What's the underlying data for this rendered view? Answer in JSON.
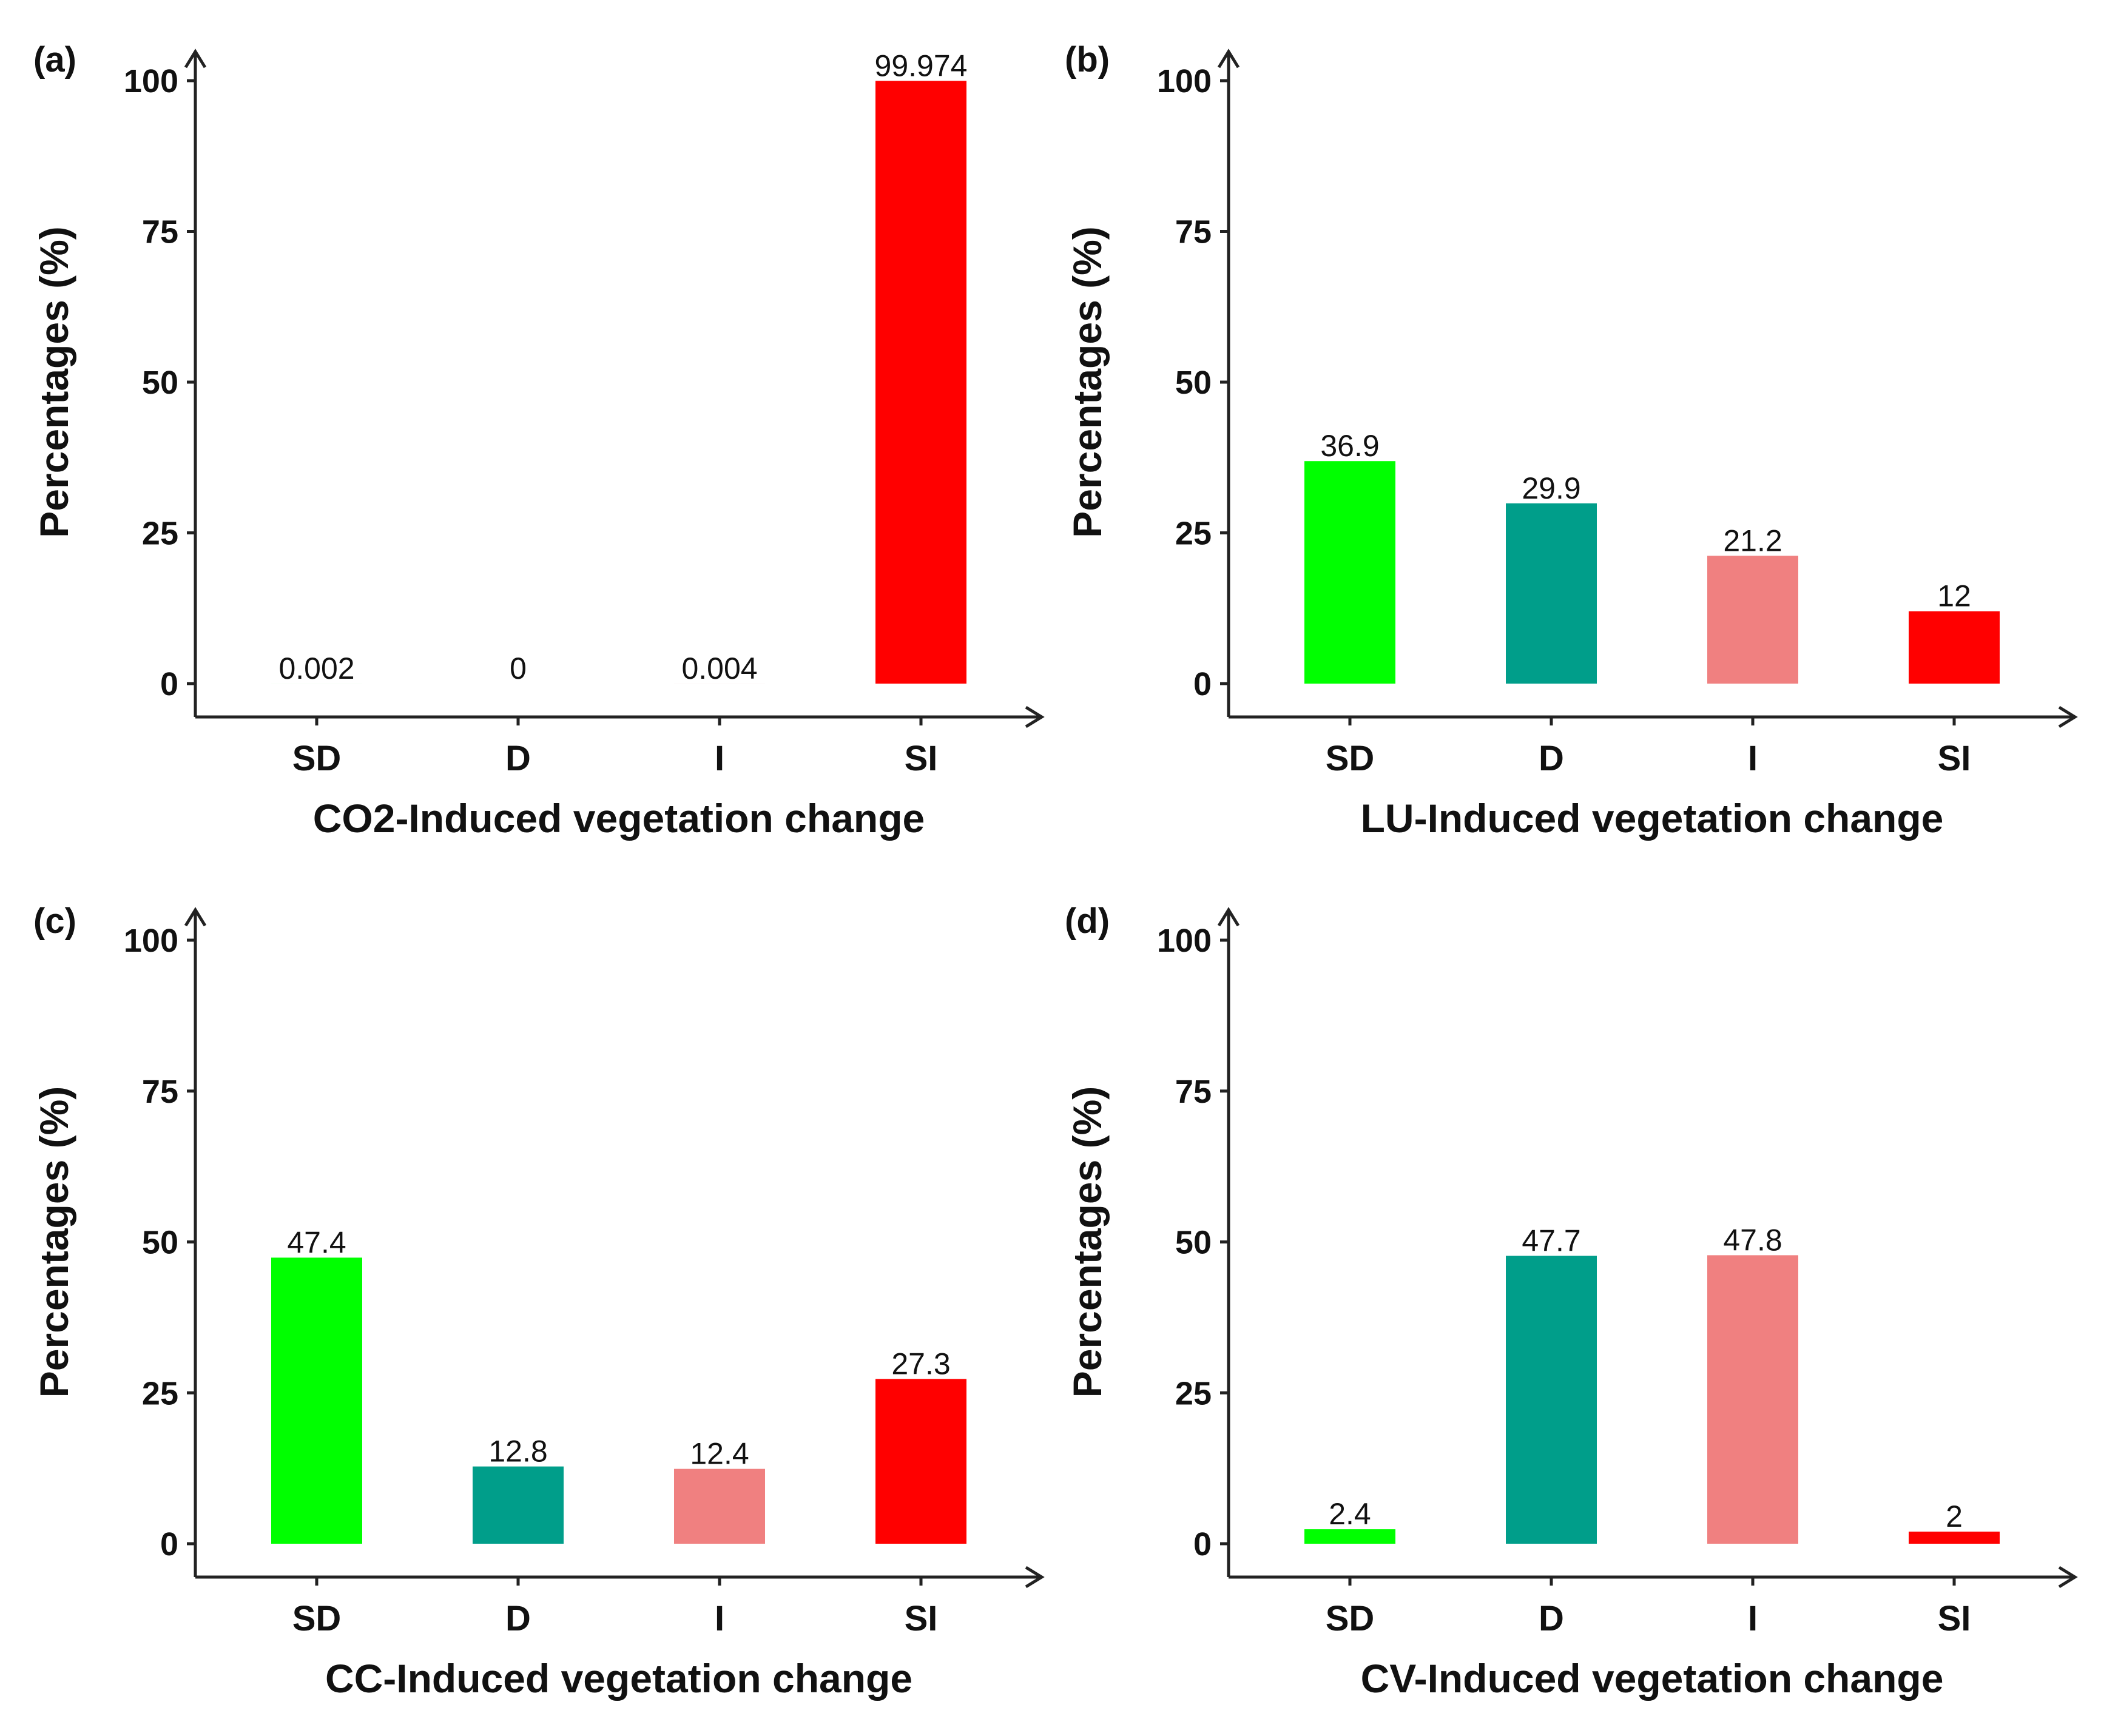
{
  "chart_data": [
    {
      "panel": "(a)",
      "type": "bar",
      "categories": [
        "SD",
        "D",
        "I",
        "SI"
      ],
      "values": [
        0.002,
        0,
        0.004,
        99.974
      ],
      "value_labels": [
        "0.002",
        "0",
        "0.004",
        "99.974"
      ],
      "colors": [
        "#00ff00",
        "#009e8a",
        "#f08080",
        "#ff0000"
      ],
      "xlabel": "CO2-Induced vegetation change",
      "ylabel": "Percentages (%)",
      "ylim": [
        0,
        100
      ],
      "yticks": [
        "0",
        "25",
        "50",
        "75",
        "100"
      ],
      "grid": false
    },
    {
      "panel": "(b)",
      "type": "bar",
      "categories": [
        "SD",
        "D",
        "I",
        "SI"
      ],
      "values": [
        36.9,
        29.9,
        21.2,
        12
      ],
      "value_labels": [
        "36.9",
        "29.9",
        "21.2",
        "12"
      ],
      "colors": [
        "#00ff00",
        "#009e8a",
        "#f08080",
        "#ff0000"
      ],
      "xlabel": "LU-Induced vegetation change",
      "ylabel": "Percentages (%)",
      "ylim": [
        0,
        100
      ],
      "yticks": [
        "0",
        "25",
        "50",
        "75",
        "100"
      ],
      "grid": false
    },
    {
      "panel": "(c)",
      "type": "bar",
      "categories": [
        "SD",
        "D",
        "I",
        "SI"
      ],
      "values": [
        47.4,
        12.8,
        12.4,
        27.3
      ],
      "value_labels": [
        "47.4",
        "12.8",
        "12.4",
        "27.3"
      ],
      "colors": [
        "#00ff00",
        "#009e8a",
        "#f08080",
        "#ff0000"
      ],
      "xlabel": "CC-Induced vegetation change",
      "ylabel": "Percentages (%)",
      "ylim": [
        0,
        100
      ],
      "yticks": [
        "0",
        "25",
        "50",
        "75",
        "100"
      ],
      "grid": false
    },
    {
      "panel": "(d)",
      "type": "bar",
      "categories": [
        "SD",
        "D",
        "I",
        "SI"
      ],
      "values": [
        2.4,
        47.7,
        47.8,
        2
      ],
      "value_labels": [
        "2.4",
        "47.7",
        "47.8",
        "2"
      ],
      "colors": [
        "#00ff00",
        "#009e8a",
        "#f08080",
        "#ff0000"
      ],
      "xlabel": "CV-Induced vegetation change",
      "ylabel": "Percentages (%)",
      "ylim": [
        0,
        100
      ],
      "yticks": [
        "0",
        "25",
        "50",
        "75",
        "100"
      ],
      "grid": false
    }
  ]
}
